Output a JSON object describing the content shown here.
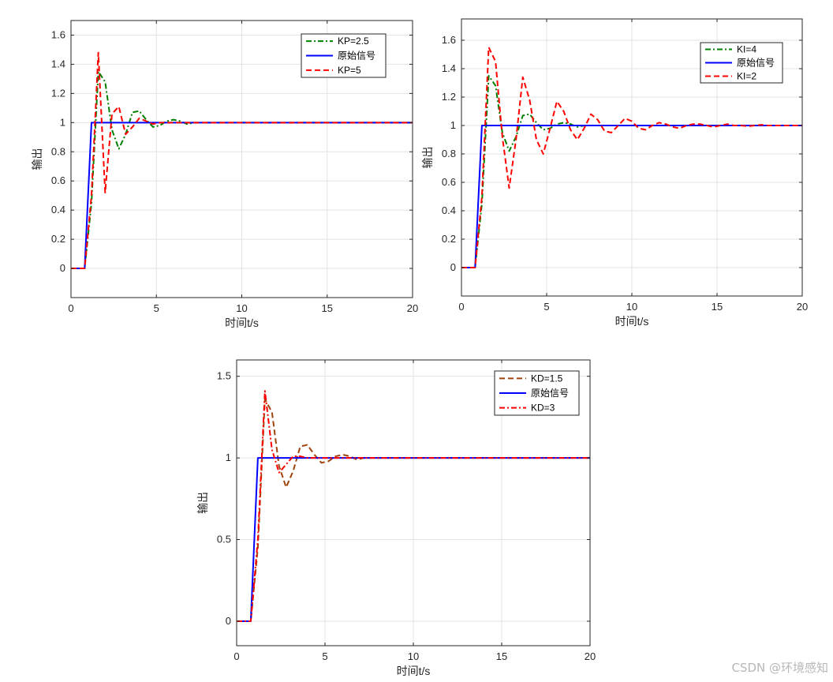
{
  "chart_data": [
    {
      "type": "line",
      "xlabel": "时间t/s",
      "ylabel": "输出",
      "xlim": [
        0,
        20
      ],
      "ylim": [
        -0.2,
        1.7
      ],
      "xticks": [
        0,
        5,
        10,
        15,
        20
      ],
      "yticks": [
        0,
        0.2,
        0.4,
        0.6,
        0.8,
        1,
        1.2,
        1.4,
        1.6
      ],
      "grid": true,
      "legend_position": "top-right",
      "series": [
        {
          "name": "KP=2.5",
          "color": "#008000",
          "style": "dashdot",
          "x": [
            0,
            0.8,
            1.2,
            1.6,
            2.0,
            2.4,
            2.8,
            3.2,
            3.6,
            4.0,
            4.4,
            4.8,
            5.2,
            5.6,
            6.0,
            6.4,
            6.8,
            7.2,
            7.6,
            8.0,
            20
          ],
          "y": [
            0,
            0,
            0.45,
            1.35,
            1.28,
            0.95,
            0.82,
            0.92,
            1.07,
            1.08,
            1.02,
            0.97,
            0.98,
            1.01,
            1.02,
            1.01,
            0.99,
            1.0,
            1.0,
            1.0,
            1.0
          ]
        },
        {
          "name": "原始信号",
          "color": "#0000FF",
          "style": "solid",
          "x": [
            0,
            0.8,
            1.2,
            20
          ],
          "y": [
            0,
            0,
            1,
            1
          ]
        },
        {
          "name": "KP=5",
          "color": "#FF0000",
          "style": "dashed",
          "x": [
            0,
            0.8,
            1.2,
            1.6,
            2.0,
            2.4,
            2.8,
            3.2,
            3.6,
            4.0,
            4.4,
            4.8,
            5.2,
            5.6,
            6.0,
            6.4,
            20
          ],
          "y": [
            0,
            0,
            0.5,
            1.48,
            0.52,
            1.06,
            1.11,
            0.92,
            0.97,
            1.03,
            1.01,
            0.99,
            1.0,
            1.0,
            1.0,
            1.0,
            1.0
          ]
        }
      ]
    },
    {
      "type": "line",
      "xlabel": "时间t/s",
      "ylabel": "输出",
      "xlim": [
        0,
        20
      ],
      "ylim": [
        -0.2,
        1.75
      ],
      "xticks": [
        0,
        5,
        10,
        15,
        20
      ],
      "yticks": [
        0,
        0.2,
        0.4,
        0.6,
        0.8,
        1,
        1.2,
        1.4,
        1.6
      ],
      "grid": true,
      "legend_position": "top-right",
      "series": [
        {
          "name": "KI=4",
          "color": "#008000",
          "style": "dashdot",
          "x": [
            0,
            0.8,
            1.2,
            1.6,
            2.0,
            2.4,
            2.8,
            3.2,
            3.6,
            4.0,
            4.4,
            4.8,
            5.2,
            5.6,
            6.0,
            6.4,
            6.8,
            7.2,
            7.6,
            8.0,
            20
          ],
          "y": [
            0,
            0,
            0.45,
            1.35,
            1.28,
            0.95,
            0.82,
            0.92,
            1.07,
            1.08,
            1.02,
            0.97,
            0.98,
            1.01,
            1.02,
            1.01,
            0.99,
            1.0,
            1.0,
            1.0,
            1.0
          ]
        },
        {
          "name": "原始信号",
          "color": "#0000FF",
          "style": "solid",
          "x": [
            0,
            0.8,
            1.2,
            20
          ],
          "y": [
            0,
            0,
            1,
            1
          ]
        },
        {
          "name": "KI=2",
          "color": "#FF0000",
          "style": "dashed",
          "x": [
            0,
            0.8,
            1.2,
            1.6,
            2.0,
            2.4,
            2.8,
            3.2,
            3.6,
            4.0,
            4.4,
            4.8,
            5.2,
            5.6,
            6.0,
            6.4,
            6.8,
            7.2,
            7.6,
            8.0,
            8.4,
            8.8,
            9.2,
            9.6,
            10.0,
            10.4,
            10.8,
            11.2,
            11.6,
            12.0,
            12.4,
            12.8,
            13.2,
            13.6,
            14.0,
            14.4,
            14.8,
            15.2,
            15.6,
            16.0,
            16.4,
            16.8,
            17.2,
            17.6,
            18.0,
            18.4,
            18.8,
            19.2,
            19.6,
            20
          ],
          "y": [
            0,
            0,
            0.5,
            1.55,
            1.45,
            0.92,
            0.56,
            0.9,
            1.34,
            1.18,
            0.9,
            0.8,
            0.98,
            1.17,
            1.1,
            0.97,
            0.9,
            0.98,
            1.08,
            1.04,
            0.96,
            0.95,
            1.0,
            1.05,
            1.03,
            0.98,
            0.97,
            1.0,
            1.02,
            1.01,
            0.99,
            0.98,
            1.0,
            1.01,
            1.01,
            1.0,
            0.99,
            1.0,
            1.01,
            1.0,
            1.0,
            0.995,
            1.0,
            1.005,
            1.0,
            1.0,
            1.0,
            1.0,
            1.0,
            1.0
          ]
        }
      ]
    },
    {
      "type": "line",
      "xlabel": "时间t/s",
      "ylabel": "输出",
      "xlim": [
        0,
        20
      ],
      "ylim": [
        -0.15,
        1.6
      ],
      "xticks": [
        0,
        5,
        10,
        15,
        20
      ],
      "yticks": [
        0,
        0.5,
        1,
        1.5
      ],
      "grid": true,
      "legend_position": "top-right",
      "series": [
        {
          "name": "KD=1.5",
          "color": "#A0440C",
          "style": "dashed",
          "x": [
            0,
            0.8,
            1.2,
            1.6,
            2.0,
            2.4,
            2.8,
            3.2,
            3.6,
            4.0,
            4.4,
            4.8,
            5.2,
            5.6,
            6.0,
            6.4,
            6.8,
            7.2,
            7.6,
            8.0,
            20
          ],
          "y": [
            0,
            0,
            0.45,
            1.36,
            1.28,
            0.95,
            0.82,
            0.92,
            1.07,
            1.08,
            1.02,
            0.97,
            0.98,
            1.01,
            1.02,
            1.01,
            0.99,
            1.0,
            1.0,
            1.0,
            1.0
          ]
        },
        {
          "name": "原始信号",
          "color": "#0000FF",
          "style": "solid",
          "x": [
            0,
            0.8,
            1.2,
            20
          ],
          "y": [
            0,
            0,
            1,
            1
          ]
        },
        {
          "name": "KD=3",
          "color": "#FF0000",
          "style": "dashdot",
          "x": [
            0,
            0.8,
            1.2,
            1.6,
            2.0,
            2.4,
            2.8,
            3.2,
            3.6,
            4.0,
            4.4,
            4.8,
            5.2,
            20
          ],
          "y": [
            0,
            0,
            0.5,
            1.41,
            1.05,
            0.91,
            0.96,
            1.01,
            1.01,
            1.0,
            1.0,
            1.0,
            1.0,
            1.0
          ]
        }
      ]
    }
  ],
  "watermark": "CSDN @环境感知"
}
